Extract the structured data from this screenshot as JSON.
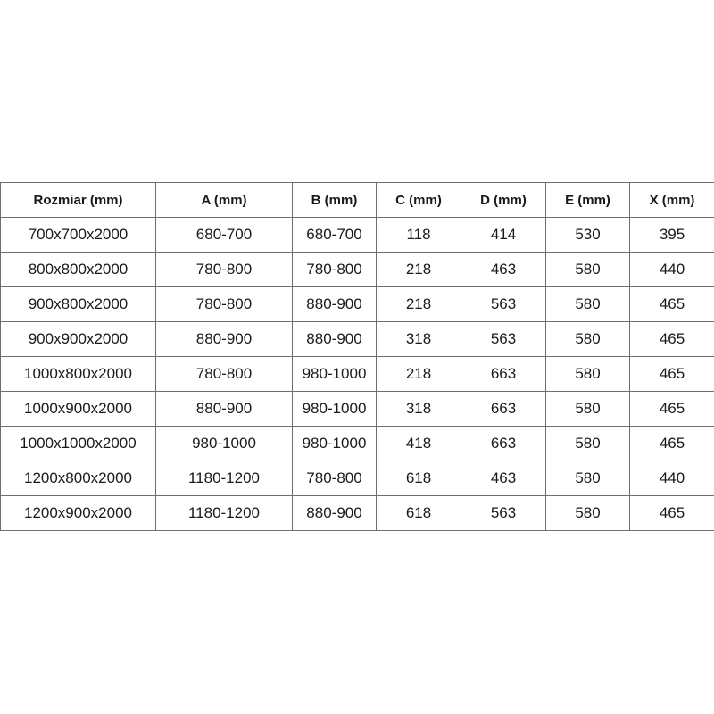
{
  "table": {
    "headers": [
      "Rozmiar (mm)",
      "A (mm)",
      "B (mm)",
      "C (mm)",
      "D (mm)",
      "E (mm)",
      "X (mm)"
    ],
    "rows": [
      [
        "700x700x2000",
        "680-700",
        "680-700",
        "118",
        "414",
        "530",
        "395"
      ],
      [
        "800x800x2000",
        "780-800",
        "780-800",
        "218",
        "463",
        "580",
        "440"
      ],
      [
        "900x800x2000",
        "780-800",
        "880-900",
        "218",
        "563",
        "580",
        "465"
      ],
      [
        "900x900x2000",
        "880-900",
        "880-900",
        "318",
        "563",
        "580",
        "465"
      ],
      [
        "1000x800x2000",
        "780-800",
        "980-1000",
        "218",
        "663",
        "580",
        "465"
      ],
      [
        "1000x900x2000",
        "880-900",
        "980-1000",
        "318",
        "663",
        "580",
        "465"
      ],
      [
        "1000x1000x2000",
        "980-1000",
        "980-1000",
        "418",
        "663",
        "580",
        "465"
      ],
      [
        "1200x800x2000",
        "1180-1200",
        "780-800",
        "618",
        "463",
        "580",
        "440"
      ],
      [
        "1200x900x2000",
        "1180-1200",
        "880-900",
        "618",
        "563",
        "580",
        "465"
      ]
    ]
  }
}
